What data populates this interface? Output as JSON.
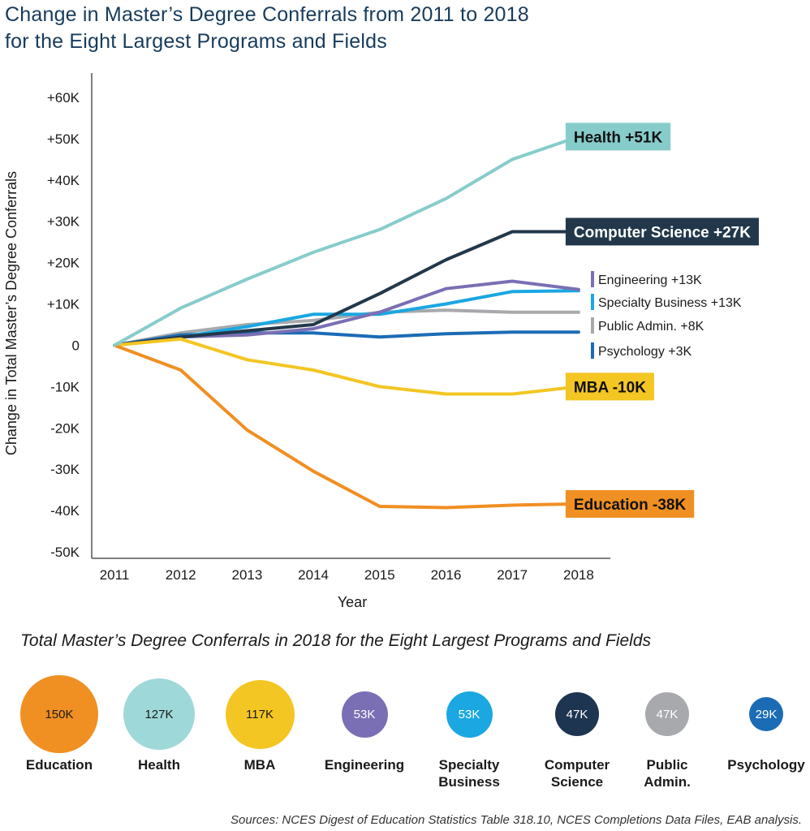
{
  "title_line1": "Change in Master’s Degree Conferrals from 2011 to 2018",
  "title_line2": "for the Eight Largest Programs and Fields",
  "subtitle": "Total Master’s Degree Conferrals in 2018 for the Eight Largest Programs and Fields",
  "sources": "Sources: NCES Digest of Education Statistics Table 318.10, NCES Completions Data Files, EAB analysis.",
  "chart_data": {
    "type": "line",
    "x": [
      2011,
      2012,
      2013,
      2014,
      2015,
      2016,
      2017,
      2018
    ],
    "x_tick_labels": [
      "2011",
      "2012",
      "2013",
      "2014",
      "2015",
      "2016",
      "2017",
      "2018"
    ],
    "xlabel": "Year",
    "ylabel": "Change in Total Master’s Degree Conferrals",
    "ylim": [
      -50000,
      60000
    ],
    "y_ticks": [
      60000,
      50000,
      40000,
      30000,
      20000,
      10000,
      0,
      -10000,
      -20000,
      -30000,
      -40000,
      -50000
    ],
    "y_tick_labels": [
      "+60K",
      "+50K",
      "+40K",
      "+30K",
      "+20K",
      "+10K",
      "0",
      "-10K",
      "-20K",
      "-30K",
      "-40K",
      "-50K"
    ],
    "series": [
      {
        "name": "Public Admin.",
        "label": "Public Admin. +8K",
        "color": "#a7a9ac",
        "label_style": "tick",
        "values": [
          0,
          3000,
          5000,
          6000,
          8000,
          8500,
          8000,
          8000
        ]
      },
      {
        "name": "Psychology",
        "label": "Psychology +3K",
        "color": "#1b6cb5",
        "label_style": "tick",
        "values": [
          0,
          2500,
          3000,
          3000,
          2000,
          2800,
          3200,
          3200
        ]
      },
      {
        "name": "Specialty Business",
        "label": "Specialty Business +13K",
        "color": "#1ba7e1",
        "label_style": "tick",
        "values": [
          0,
          2000,
          4500,
          7500,
          7500,
          10000,
          13000,
          13200
        ]
      },
      {
        "name": "Engineering",
        "label": "Engineering +13K",
        "color": "#7a6fb4",
        "label_style": "tick",
        "values": [
          0,
          2000,
          2500,
          4000,
          8000,
          13700,
          15500,
          13500
        ]
      },
      {
        "name": "Computer Science",
        "label": "Computer Science  +27K",
        "color": "#22384a",
        "label_style": "box",
        "values": [
          0,
          2000,
          3500,
          5000,
          12500,
          20700,
          27500,
          27500
        ]
      },
      {
        "name": "MBA",
        "label": "MBA  -10K",
        "color": "#f3c623",
        "label_style": "box",
        "values": [
          0,
          1500,
          -3500,
          -6000,
          -10000,
          -11800,
          -11800,
          -10000
        ]
      },
      {
        "name": "Education",
        "label": "Education  -38K",
        "color": "#f08f22",
        "label_style": "box",
        "values": [
          0,
          -6000,
          -20500,
          -30500,
          -39000,
          -39300,
          -38700,
          -38400
        ]
      },
      {
        "name": "Health",
        "label": "Health  +51K",
        "color": "#86cccb",
        "label_style": "box",
        "values": [
          0,
          9000,
          16000,
          22500,
          28000,
          35500,
          45000,
          50500
        ]
      }
    ]
  },
  "bubbles": [
    {
      "name": "Education",
      "name2": "",
      "value_label": "150K",
      "value": 150,
      "color": "#f08f22",
      "text_color": "#1a1a1a"
    },
    {
      "name": "Health",
      "name2": "",
      "value_label": "127K",
      "value": 127,
      "color": "#9fd8d8",
      "text_color": "#1a1a1a"
    },
    {
      "name": "MBA",
      "name2": "",
      "value_label": "117K",
      "value": 117,
      "color": "#f3c623",
      "text_color": "#1a1a1a"
    },
    {
      "name": "Engineering",
      "name2": "",
      "value_label": "53K",
      "value": 53,
      "color": "#7a6fb4",
      "text_color": "#ffffff"
    },
    {
      "name": "Specialty",
      "name2": "Business",
      "value_label": "53K",
      "value": 53,
      "color": "#1ba7e1",
      "text_color": "#ffffff"
    },
    {
      "name": "Computer",
      "name2": "Science",
      "value_label": "47K",
      "value": 47,
      "color": "#1d3550",
      "text_color": "#ffffff"
    },
    {
      "name": "Public",
      "name2": "Admin.",
      "value_label": "47K",
      "value": 47,
      "color": "#a7a9ac",
      "text_color": "#ffffff"
    },
    {
      "name": "Psychology",
      "name2": "",
      "value_label": "29K",
      "value": 29,
      "color": "#1b6cb5",
      "text_color": "#ffffff"
    }
  ]
}
